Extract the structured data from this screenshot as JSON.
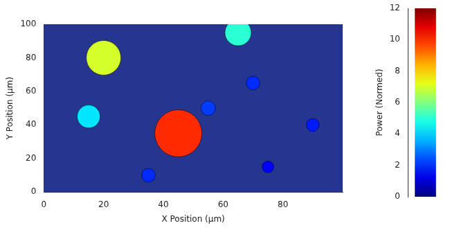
{
  "chart_data": {
    "type": "bubble",
    "x_label": "X Position (µm)",
    "y_label": "Y Position (µm)",
    "z_label": "Power (Normed)",
    "xlim": [
      0,
      100
    ],
    "xticks": [
      0,
      20,
      40,
      60,
      80
    ],
    "ylim": [
      0,
      100
    ],
    "yticks": [
      0,
      20,
      40,
      60,
      80,
      100
    ],
    "zlim": [
      0,
      12
    ],
    "zticks": [
      0,
      2,
      4,
      6,
      8,
      10,
      12
    ],
    "grid": false,
    "points": {
      "x": [
        75,
        35,
        90,
        55,
        70,
        15,
        65,
        20,
        45
      ],
      "y": [
        15,
        10,
        40,
        50,
        65,
        45,
        95,
        80,
        35
      ],
      "power": [
        1.5,
        2,
        1.8,
        2.2,
        2,
        4.2,
        5,
        7,
        10
      ]
    }
  }
}
